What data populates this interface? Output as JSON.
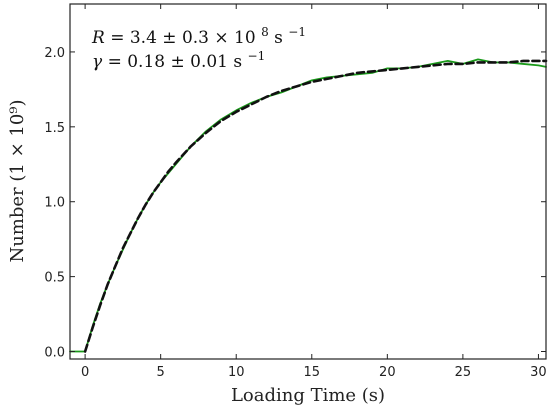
{
  "chart_data": {
    "type": "line",
    "xlabel": "Loading Time (s)",
    "ylabel": "Number (1 × 10⁹)",
    "xlim": [
      -1,
      30.5
    ],
    "ylim": [
      -0.05,
      2.32
    ],
    "x_ticks": [
      0,
      5,
      10,
      15,
      20,
      25,
      30
    ],
    "x_tick_labels": [
      "0",
      "5",
      "10",
      "15",
      "20",
      "25",
      "30"
    ],
    "y_ticks": [
      0.0,
      0.5,
      1.0,
      1.5,
      2.0
    ],
    "y_tick_labels": [
      "0.0",
      "0.5",
      "1.0",
      "1.5",
      "2.0"
    ],
    "grid": false,
    "annotations": [
      {
        "lhs": "R",
        "rhs": "= 3.4 ± 0.3 × 10",
        "sup": "8",
        "unit": " s",
        "unit_sup": "−1"
      },
      {
        "lhs": "γ",
        "rhs": "= 0.18 ± 0.01 s",
        "sup": "",
        "unit": "",
        "unit_sup": "−1"
      }
    ],
    "series": [
      {
        "color": "#1a9a1a",
        "style": "solid",
        "x": [
          -1,
          0,
          0.5,
          1,
          1.5,
          2,
          2.5,
          3,
          3.5,
          4,
          4.5,
          5,
          5.5,
          6,
          7,
          8,
          9,
          10,
          11,
          12,
          13,
          14,
          15,
          16,
          17,
          18,
          19,
          20,
          21,
          22,
          23,
          24,
          25,
          26,
          27,
          28,
          29,
          30,
          30.5
        ],
        "y": [
          0.0,
          0.0,
          0.17,
          0.32,
          0.45,
          0.57,
          0.68,
          0.79,
          0.89,
          0.98,
          1.06,
          1.13,
          1.19,
          1.25,
          1.37,
          1.47,
          1.55,
          1.61,
          1.66,
          1.7,
          1.73,
          1.77,
          1.81,
          1.83,
          1.84,
          1.85,
          1.86,
          1.89,
          1.89,
          1.9,
          1.92,
          1.94,
          1.92,
          1.95,
          1.93,
          1.93,
          1.92,
          1.91,
          1.9
        ]
      },
      {
        "color": "#111111",
        "style": "dashed",
        "x": [
          0,
          0.5,
          1,
          1.5,
          2,
          2.5,
          3,
          3.5,
          4,
          4.5,
          5,
          5.5,
          6,
          7,
          8,
          9,
          10,
          11,
          12,
          13,
          14,
          15,
          16,
          17,
          18,
          19,
          20,
          21,
          22,
          23,
          24,
          25,
          26,
          27,
          28,
          29,
          30,
          30.5
        ],
        "y": [
          0.0,
          0.16,
          0.31,
          0.45,
          0.57,
          0.69,
          0.79,
          0.89,
          0.98,
          1.06,
          1.13,
          1.2,
          1.26,
          1.37,
          1.46,
          1.54,
          1.6,
          1.65,
          1.7,
          1.74,
          1.77,
          1.8,
          1.82,
          1.84,
          1.86,
          1.87,
          1.88,
          1.89,
          1.9,
          1.91,
          1.92,
          1.92,
          1.93,
          1.93,
          1.93,
          1.94,
          1.94,
          1.94
        ]
      }
    ]
  }
}
